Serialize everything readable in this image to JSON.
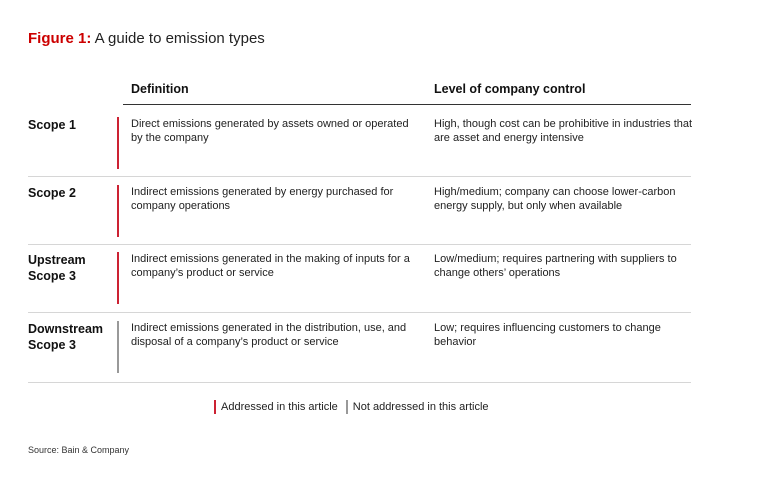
{
  "title": {
    "label": "Figure 1:",
    "text": " A guide to emission types"
  },
  "columns": {
    "definition": "Definition",
    "control": "Level of company control"
  },
  "rows": [
    {
      "scope": "Scope 1",
      "definition": "Direct emissions generated by assets owned or operated by the company",
      "control": "High, though cost can be prohibitive in industries that are asset and energy intensive",
      "status": "addressed"
    },
    {
      "scope": "Scope 2",
      "definition": "Indirect emissions generated by energy purchased for company operations",
      "control": "High/medium; company can choose lower-carbon energy supply, but only when available",
      "status": "addressed"
    },
    {
      "scope": "Upstream Scope 3",
      "definition": "Indirect emissions generated in the making of inputs for a company’s product or service",
      "control": "Low/medium; requires partnering with suppliers to change others’ operations",
      "status": "addressed"
    },
    {
      "scope": "Downstream Scope 3",
      "definition": "Indirect emissions generated in the distribution, use, and disposal of a company’s product or service",
      "control": "Low; requires influencing customers to change behavior",
      "status": "not_addressed"
    }
  ],
  "legend": {
    "addressed": "Addressed in this article",
    "not_addressed": "Not addressed in this article"
  },
  "colors": {
    "addressed": "#cc2233",
    "not_addressed": "#999999",
    "title_accent": "#cc0000"
  },
  "source": "Source: Bain & Company"
}
